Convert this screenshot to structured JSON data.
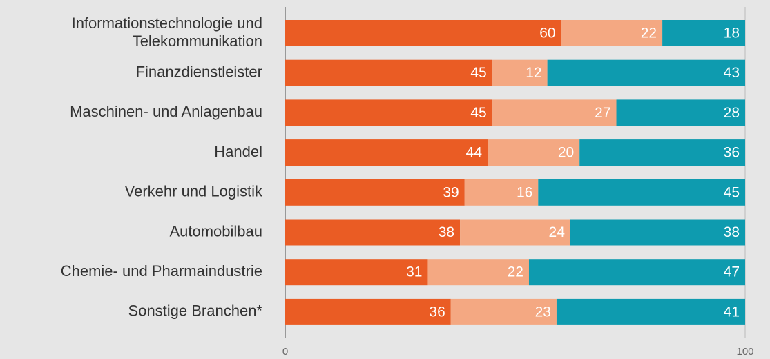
{
  "chart_data": {
    "type": "stacked-bar-horizontal",
    "categories": [
      "Informationstechnologie und\nTelekommunikation",
      "Finanzdienstleister",
      "Maschinen- und Anlagenbau",
      "Handel",
      "Verkehr und Logistik",
      "Automobilbau",
      "Chemie- und Pharmaindustrie",
      "Sonstige Branchen*"
    ],
    "series": [
      {
        "color": "#ea5c24",
        "values": [
          60,
          45,
          45,
          44,
          39,
          38,
          31,
          36
        ]
      },
      {
        "color": "#f4a882",
        "values": [
          22,
          12,
          27,
          20,
          16,
          24,
          22,
          23
        ]
      },
      {
        "color": "#0e9baf",
        "values": [
          18,
          43,
          28,
          36,
          45,
          38,
          47,
          41
        ]
      }
    ],
    "xlim": [
      0,
      100
    ],
    "xticks": [
      0,
      100
    ]
  }
}
